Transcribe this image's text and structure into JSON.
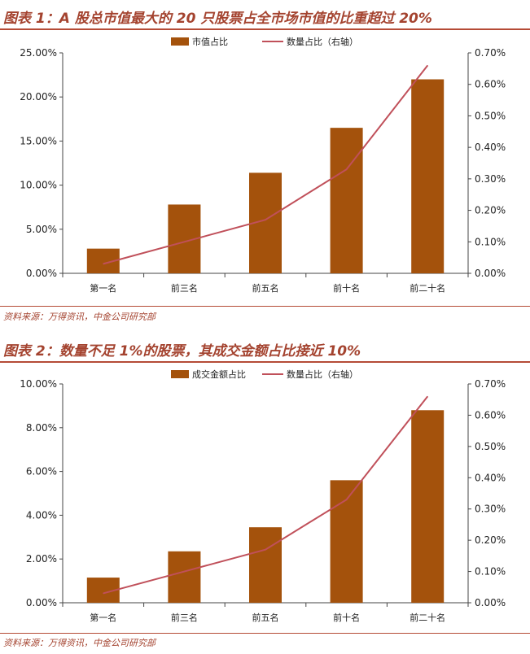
{
  "colors": {
    "bar": "#a4520c",
    "line": "#c0505a",
    "title": "#a4432f",
    "rule": "#b54b36"
  },
  "panels": [
    {
      "title": "图表 1：A 股总市值最大的 20 只股票占全市场市值的比重超过 20%",
      "source": "资料来源：万得资讯，中金公司研究部"
    },
    {
      "title": "图表 2：数量不足 1%的股票，其成交金额占比接近 10%",
      "source": "资料来源：万得资讯，中金公司研究部"
    }
  ],
  "chart_data": [
    {
      "type": "bar",
      "categories": [
        "第一名",
        "前三名",
        "前五名",
        "前十名",
        "前二十名"
      ],
      "series": [
        {
          "name": "市值占比",
          "type": "bar",
          "axis": "left",
          "values": [
            2.8,
            7.8,
            11.4,
            16.5,
            22.0
          ]
        },
        {
          "name": "数量占比（右轴）",
          "type": "line",
          "axis": "right",
          "values": [
            0.03,
            0.1,
            0.17,
            0.33,
            0.66
          ]
        }
      ],
      "ylim_left": [
        0,
        25
      ],
      "ylim_right": [
        0,
        0.7
      ],
      "yticks_left": [
        "0.00%",
        "5.00%",
        "10.00%",
        "15.00%",
        "20.00%",
        "25.00%"
      ],
      "yticks_right": [
        "0.00%",
        "0.10%",
        "0.20%",
        "0.30%",
        "0.40%",
        "0.50%",
        "0.60%",
        "0.70%"
      ],
      "legend": "top-center",
      "grid": false
    },
    {
      "type": "bar",
      "categories": [
        "第一名",
        "前三名",
        "前五名",
        "前十名",
        "前二十名"
      ],
      "series": [
        {
          "name": "成交金额占比",
          "type": "bar",
          "axis": "left",
          "values": [
            1.15,
            2.35,
            3.45,
            5.6,
            8.8
          ]
        },
        {
          "name": "数量占比（右轴）",
          "type": "line",
          "axis": "right",
          "values": [
            0.03,
            0.1,
            0.17,
            0.33,
            0.66
          ]
        }
      ],
      "ylim_left": [
        0,
        10
      ],
      "ylim_right": [
        0,
        0.7
      ],
      "yticks_left": [
        "0.00%",
        "2.00%",
        "4.00%",
        "6.00%",
        "8.00%",
        "10.00%"
      ],
      "yticks_right": [
        "0.00%",
        "0.10%",
        "0.20%",
        "0.30%",
        "0.40%",
        "0.50%",
        "0.60%",
        "0.70%"
      ],
      "legend": "top-center",
      "grid": false
    }
  ]
}
